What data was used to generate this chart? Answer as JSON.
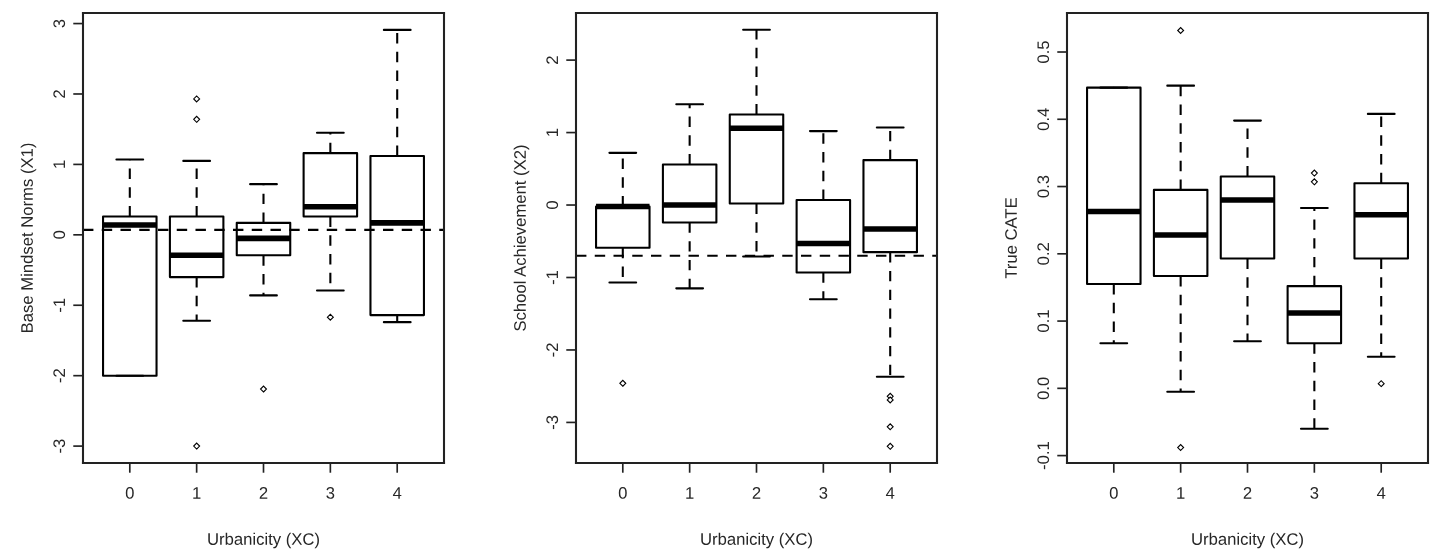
{
  "chart_data": [
    {
      "type": "box",
      "xlabel": "Urbanicity (XC)",
      "ylabel": "Base Mindset Norms (X1)",
      "categories": [
        "0",
        "1",
        "2",
        "3",
        "4"
      ],
      "ylim": [
        -3.24,
        3.15
      ],
      "yticks": [
        -3,
        -2,
        -1,
        0,
        1,
        2,
        3
      ],
      "boxes": [
        {
          "low": -2.0,
          "q1": -2.0,
          "median": 0.14,
          "q3": 0.26,
          "high": 1.07
        },
        {
          "low": -1.22,
          "q1": -0.6,
          "median": -0.29,
          "q3": 0.26,
          "high": 1.05,
          "outliers": [
            1.93,
            1.64,
            -3.0
          ]
        },
        {
          "low": -0.86,
          "q1": -0.29,
          "median": -0.05,
          "q3": 0.17,
          "high": 0.72,
          "outliers": [
            -2.19
          ]
        },
        {
          "low": -0.79,
          "q1": 0.26,
          "median": 0.4,
          "q3": 1.16,
          "high": 1.45,
          "outliers": [
            -1.17
          ]
        },
        {
          "low": -1.24,
          "q1": -1.14,
          "median": 0.17,
          "q3": 1.12,
          "high": 2.91
        }
      ],
      "ref_lines": [
        {
          "axis": "y",
          "value": 0.07,
          "line_style": "dashed",
          "color": "#000000"
        }
      ]
    },
    {
      "type": "box",
      "xlabel": "Urbanicity (XC)",
      "ylabel": "School Achievement (X2)",
      "categories": [
        "0",
        "1",
        "2",
        "3",
        "4"
      ],
      "ylim": [
        -3.56,
        2.65
      ],
      "yticks": [
        -3,
        -2,
        -1,
        0,
        1,
        2
      ],
      "boxes": [
        {
          "low": -1.07,
          "q1": -0.59,
          "median": -0.02,
          "q3": -0.02,
          "high": 0.72,
          "outliers": [
            -2.46
          ]
        },
        {
          "low": -1.15,
          "q1": -0.24,
          "median": 0.0,
          "q3": 0.56,
          "high": 1.39
        },
        {
          "low": -0.71,
          "q1": 0.02,
          "median": 1.06,
          "q3": 1.25,
          "high": 2.42
        },
        {
          "low": -1.3,
          "q1": -0.93,
          "median": -0.53,
          "q3": 0.07,
          "high": 1.02
        },
        {
          "low": -2.37,
          "q1": -0.65,
          "median": -0.33,
          "q3": 0.62,
          "high": 1.07,
          "outliers": [
            -2.64,
            -2.69,
            -3.06,
            -3.33
          ]
        }
      ],
      "ref_lines": [
        {
          "axis": "y",
          "value": -0.7,
          "line_style": "dashed",
          "color": "#000000"
        }
      ]
    },
    {
      "type": "box",
      "xlabel": "Urbanicity (XC)",
      "ylabel": "True CATE",
      "categories": [
        "0",
        "1",
        "2",
        "3",
        "4"
      ],
      "ylim": [
        -0.111,
        0.558
      ],
      "yticks": [
        -0.1,
        {
          "value": 0,
          "label": "0.0"
        },
        0.1,
        0.2,
        0.3,
        0.4,
        0.5
      ],
      "boxes": [
        {
          "low": 0.067,
          "q1": 0.155,
          "median": 0.263,
          "q3": 0.447,
          "high": 0.447
        },
        {
          "low": -0.005,
          "q1": 0.167,
          "median": 0.228,
          "q3": 0.295,
          "high": 0.45,
          "outliers": [
            0.532,
            -0.088
          ]
        },
        {
          "low": 0.07,
          "q1": 0.193,
          "median": 0.28,
          "q3": 0.315,
          "high": 0.398
        },
        {
          "low": -0.06,
          "q1": 0.067,
          "median": 0.112,
          "q3": 0.152,
          "high": 0.268,
          "outliers": [
            0.32,
            0.307
          ]
        },
        {
          "low": 0.047,
          "q1": 0.193,
          "median": 0.258,
          "q3": 0.305,
          "high": 0.408,
          "outliers": [
            0.007
          ]
        }
      ]
    }
  ]
}
